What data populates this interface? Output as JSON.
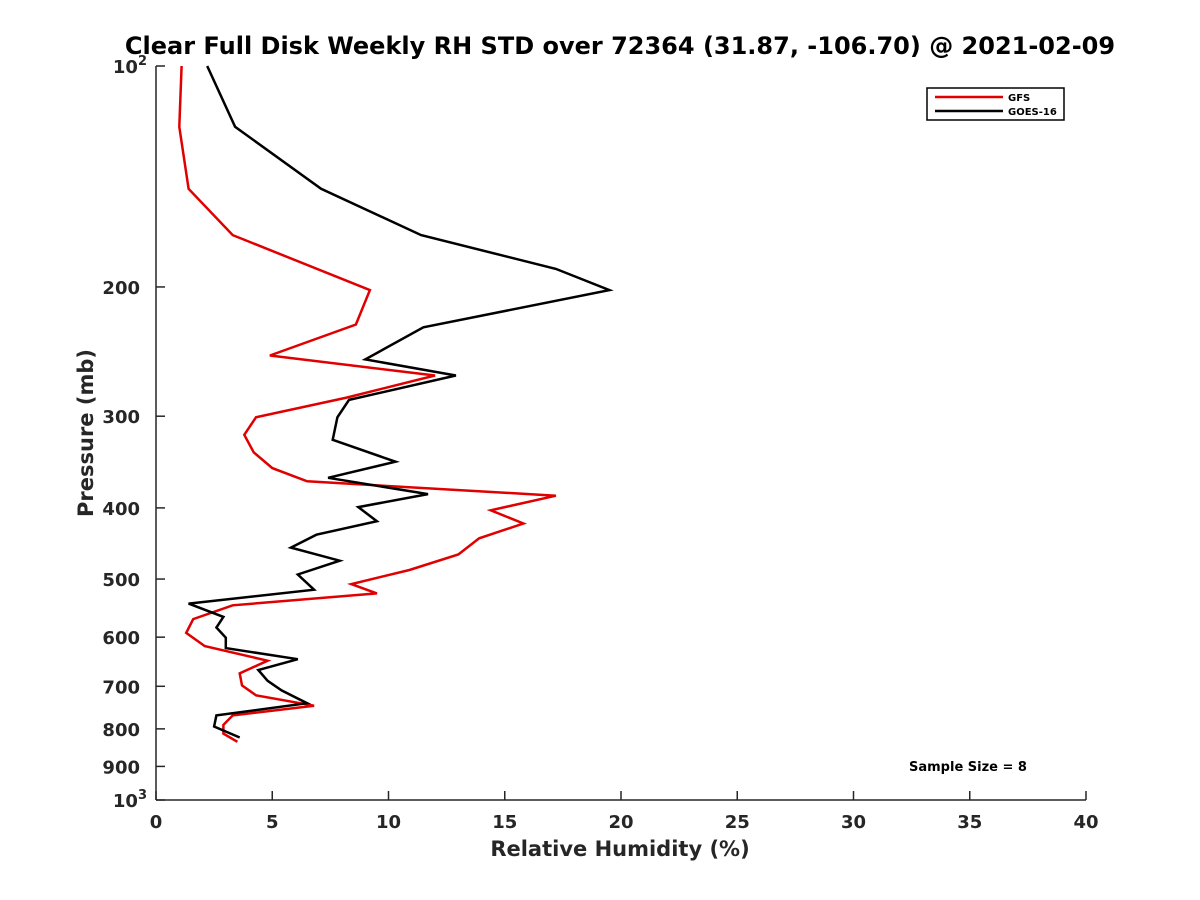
{
  "chart_data": {
    "type": "line",
    "title": "Clear Full Disk Weekly RH STD over 72364 (31.87, -106.70) @ 2021-02-09",
    "xlabel": "Relative Humidity (%)",
    "ylabel": "Pressure (mb)",
    "xlim": [
      0,
      40
    ],
    "ylim": [
      100,
      1000
    ],
    "y_scale": "log",
    "y_reversed": true,
    "x_ticks": [
      0,
      5,
      10,
      15,
      20,
      25,
      30,
      35,
      40
    ],
    "y_ticks": [
      {
        "value": 100,
        "base": "10",
        "exp": "2"
      },
      {
        "value": 200,
        "label": "200"
      },
      {
        "value": 300,
        "label": "300"
      },
      {
        "value": 400,
        "label": "400"
      },
      {
        "value": 500,
        "label": "500"
      },
      {
        "value": 600,
        "label": "600"
      },
      {
        "value": 700,
        "label": "700"
      },
      {
        "value": 800,
        "label": "800"
      },
      {
        "value": 900,
        "label": "900"
      },
      {
        "value": 1000,
        "base": "10",
        "exp": "3"
      }
    ],
    "grid": false,
    "legend_position": "top-right",
    "series": [
      {
        "name": "GFS",
        "color": "#e00000",
        "x": [
          1.1,
          1.0,
          1.4,
          3.3,
          9.2,
          8.6,
          4.9,
          12.0,
          8.2,
          4.3,
          3.8,
          4.2,
          5.0,
          6.5,
          17.2,
          14.4,
          15.8,
          13.9,
          13.0,
          10.9,
          8.4,
          9.5,
          3.3,
          1.6,
          1.3,
          2.1,
          4.8,
          3.6,
          3.7,
          4.3,
          6.8,
          3.3,
          2.9,
          2.9,
          3.5
        ],
        "y": [
          100,
          121,
          147,
          170,
          202,
          225,
          248,
          264,
          283,
          301,
          318,
          336,
          353,
          368,
          385,
          403,
          420,
          440,
          463,
          486,
          508,
          523,
          543,
          567,
          592,
          617,
          646,
          672,
          698,
          720,
          744,
          767,
          790,
          812,
          833
        ]
      },
      {
        "name": "GOES-16",
        "color": "#000000",
        "x": [
          2.2,
          3.4,
          7.1,
          11.4,
          17.2,
          19.5,
          11.5,
          9.0,
          12.9,
          8.3,
          7.8,
          7.6,
          10.3,
          7.4,
          11.7,
          8.7,
          9.5,
          6.9,
          5.8,
          7.9,
          6.1,
          6.8,
          1.4,
          2.9,
          2.6,
          3.0,
          3.0,
          6.1,
          4.4,
          4.8,
          5.4,
          6.5,
          2.6,
          2.5,
          3.6
        ],
        "y": [
          100,
          121,
          147,
          170,
          189,
          202,
          227,
          251,
          264,
          285,
          301,
          323,
          346,
          364,
          383,
          399,
          417,
          435,
          453,
          472,
          493,
          517,
          540,
          563,
          582,
          601,
          621,
          643,
          665,
          688,
          709,
          738,
          767,
          794,
          822
        ]
      }
    ],
    "annotations": [
      "Sample Size = 8"
    ]
  }
}
